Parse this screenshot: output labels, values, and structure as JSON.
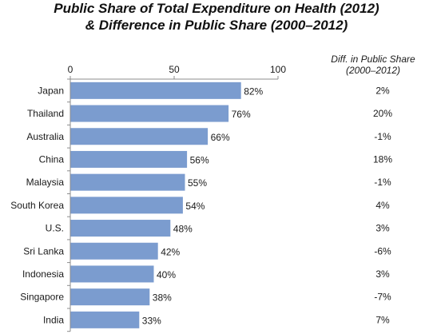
{
  "chart_data": {
    "type": "bar",
    "orientation": "horizontal",
    "title": "Public Share of Total Expenditure on Health (2012)",
    "subtitle": "& Difference in Public Share (2000–2012)",
    "categories": [
      "Japan",
      "Thailand",
      "Australia",
      "China",
      "Malaysia",
      "South Korea",
      "U.S.",
      "Sri Lanka",
      "Indonesia",
      "Singapore",
      "India"
    ],
    "values": [
      82,
      76,
      66,
      56,
      55,
      54,
      48,
      42,
      40,
      38,
      33
    ],
    "value_labels": [
      "82%",
      "76%",
      "66%",
      "56%",
      "55%",
      "54%",
      "48%",
      "42%",
      "40%",
      "38%",
      "33%"
    ],
    "xlim": [
      0,
      100
    ],
    "xticks": [
      "0",
      "50",
      "100"
    ],
    "grid": false,
    "bar_color": "#7b9ccf",
    "right_column": {
      "header_line1": "Diff. in Public Share",
      "header_line2": "(2000–2012)",
      "values": [
        "2%",
        "20%",
        "-1%",
        "18%",
        "-1%",
        "4%",
        "3%",
        "-6%",
        "3%",
        "-7%",
        "7%"
      ]
    }
  }
}
